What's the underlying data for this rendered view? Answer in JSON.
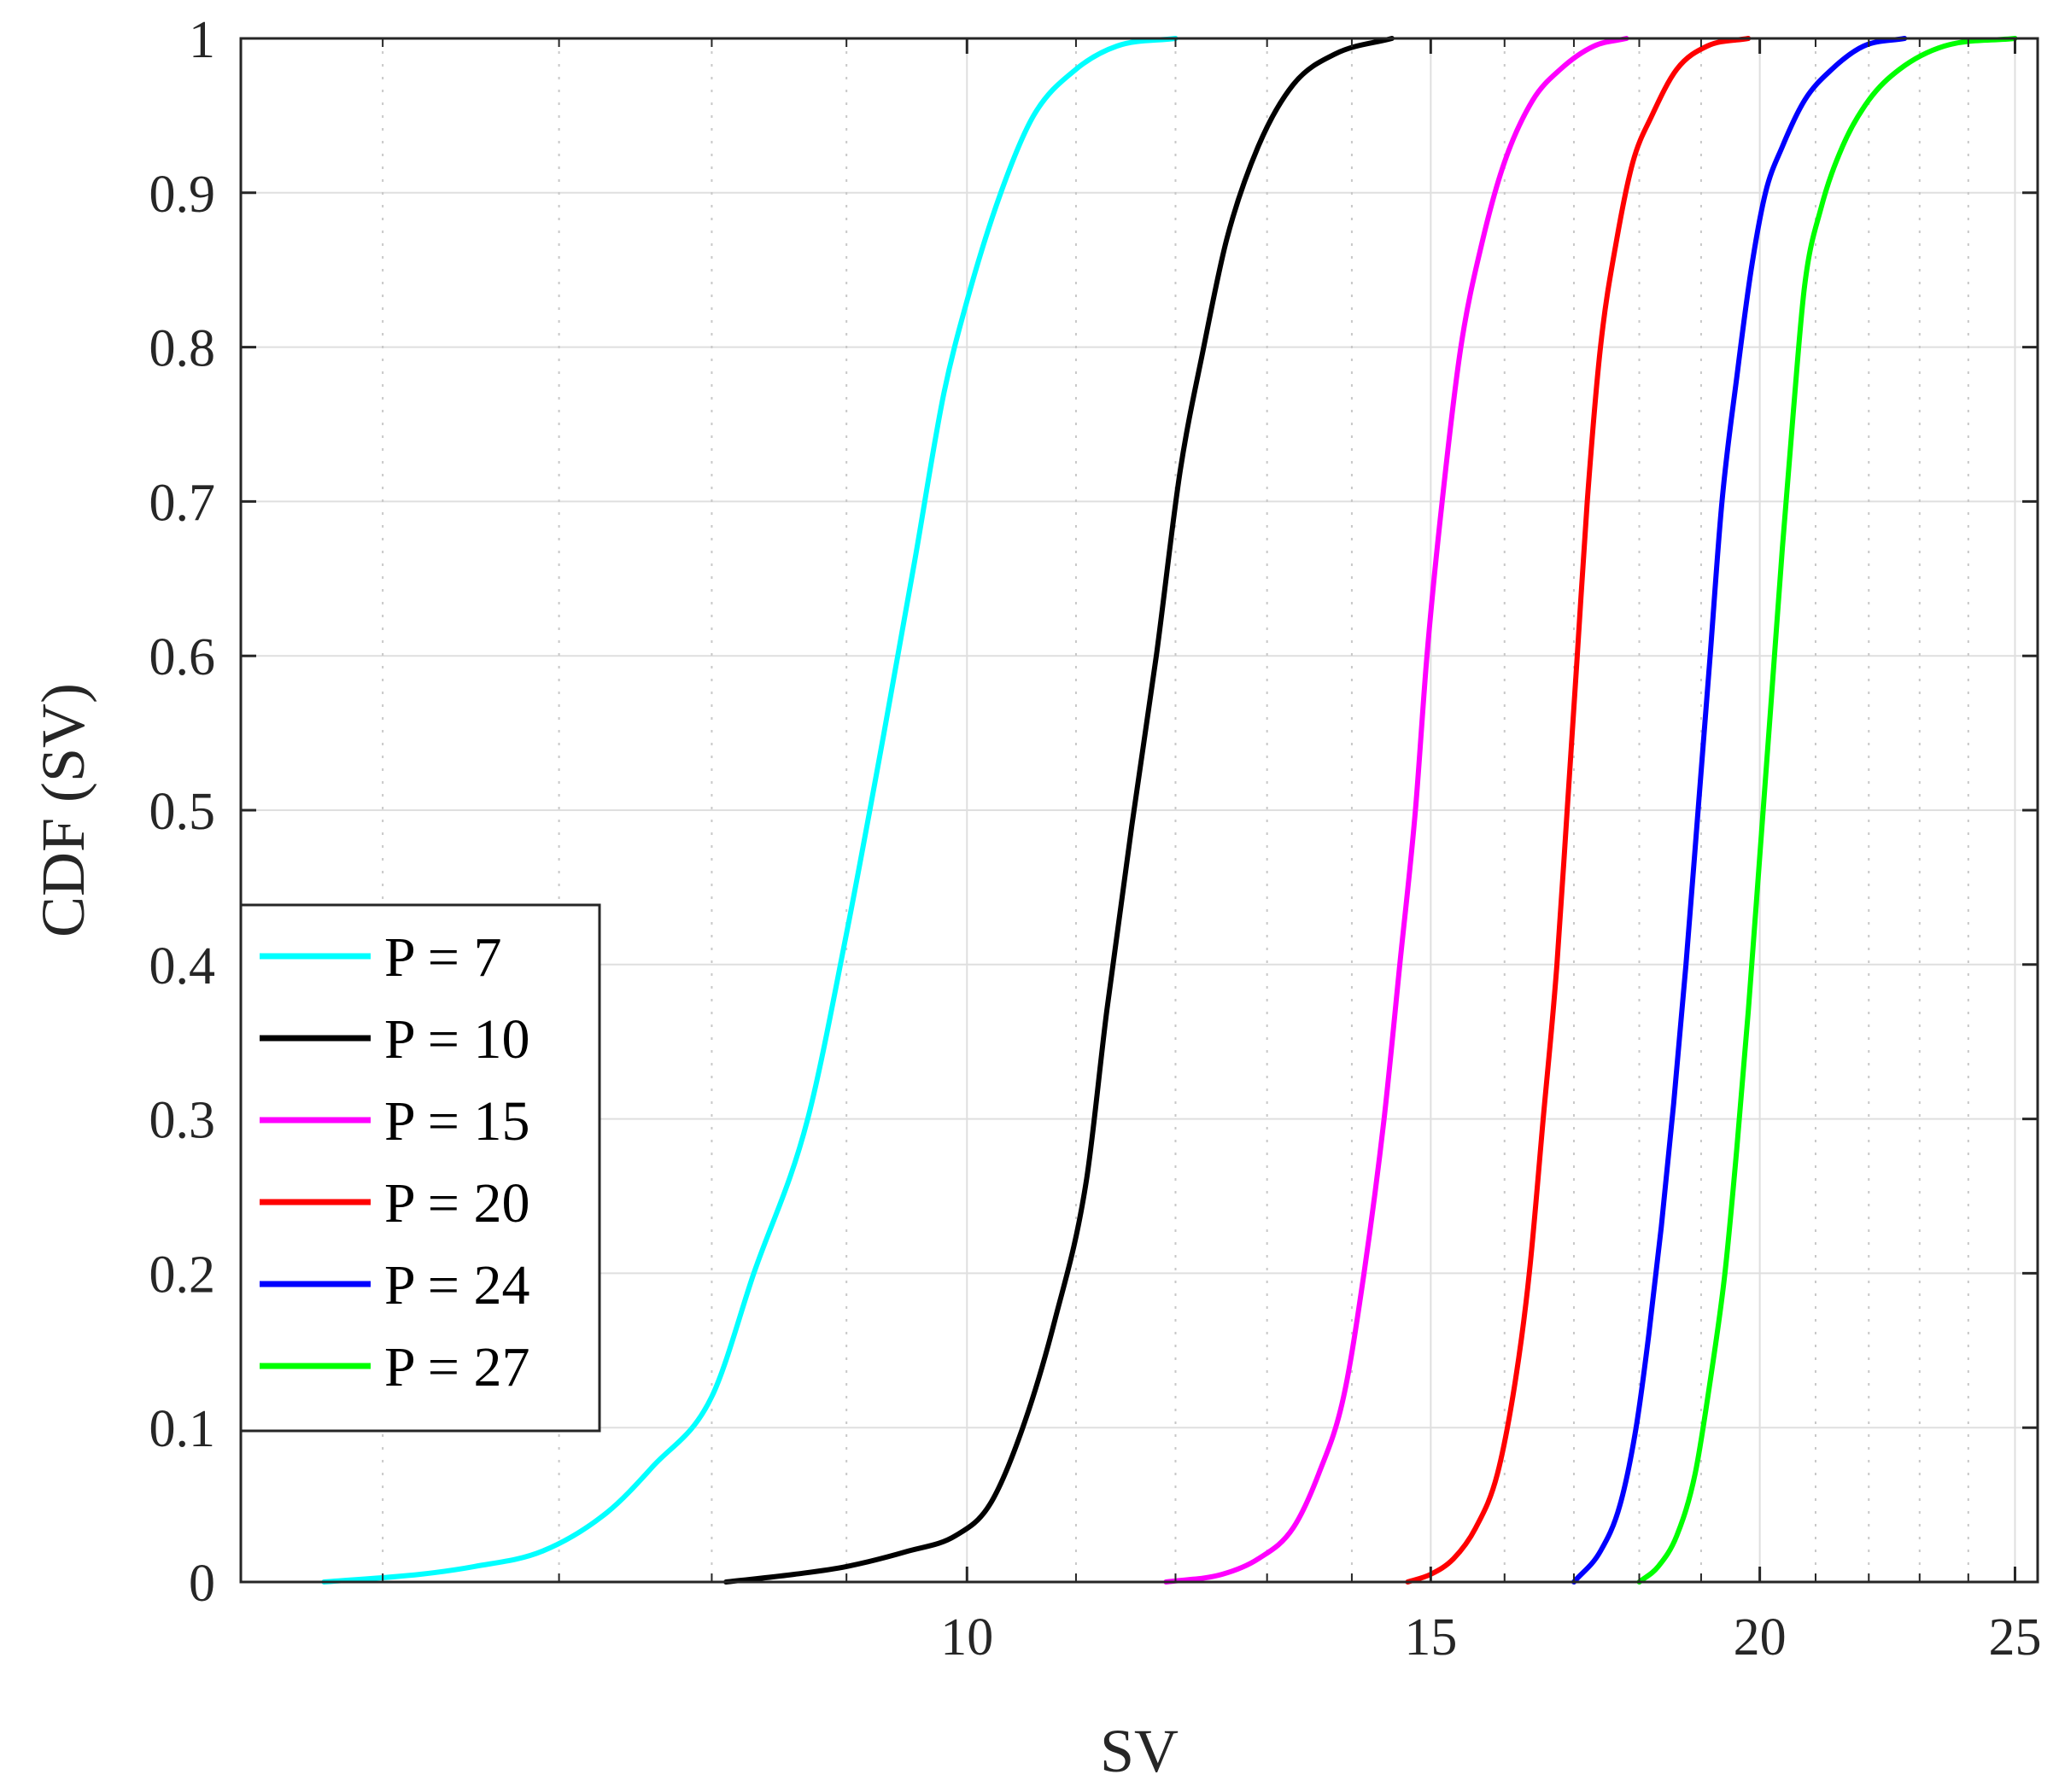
{
  "chart_data": {
    "type": "line",
    "title": "",
    "xlabel": "SV",
    "ylabel": "CDF (SV)",
    "xscale": "log",
    "xlim": [
      5.3,
      25.5
    ],
    "ylim": [
      0,
      1
    ],
    "grid": true,
    "minor_grid_x": true,
    "legend_position": "bottom-left",
    "x_ticks": [
      {
        "value": 10,
        "label": "10"
      },
      {
        "value": 15,
        "label": "15"
      },
      {
        "value": 20,
        "label": "20"
      },
      {
        "value": 25,
        "label": "25"
      }
    ],
    "x_minor_ticks": [
      6,
      7,
      8,
      9,
      11,
      12,
      13,
      14,
      16,
      17,
      18,
      19,
      21,
      22,
      23,
      24
    ],
    "y_ticks": [
      {
        "value": 0,
        "label": "0"
      },
      {
        "value": 0.1,
        "label": "0.1"
      },
      {
        "value": 0.2,
        "label": "0.2"
      },
      {
        "value": 0.3,
        "label": "0.3"
      },
      {
        "value": 0.4,
        "label": "0.4"
      },
      {
        "value": 0.5,
        "label": "0.5"
      },
      {
        "value": 0.6,
        "label": "0.6"
      },
      {
        "value": 0.7,
        "label": "0.7"
      },
      {
        "value": 0.8,
        "label": "0.8"
      },
      {
        "value": 0.9,
        "label": "0.9"
      },
      {
        "value": 1,
        "label": "1"
      }
    ],
    "series": [
      {
        "name": "P = 7",
        "color": "#00FFFF",
        "x": [
          5.7,
          6.2,
          6.5,
          6.9,
          7.3,
          7.6,
          8.0,
          8.3,
          8.7,
          9.0,
          9.3,
          9.55,
          9.8,
          10.0,
          10.3,
          10.6,
          11.0,
          11.4,
          12.0
        ],
        "y": [
          0.0,
          0.005,
          0.01,
          0.02,
          0.045,
          0.075,
          0.12,
          0.2,
          0.3,
          0.42,
          0.55,
          0.66,
          0.77,
          0.83,
          0.9,
          0.95,
          0.98,
          0.995,
          1.0
        ]
      },
      {
        "name": "P = 10",
        "color": "#000000",
        "x": [
          8.1,
          8.6,
          9.0,
          9.5,
          9.9,
          10.2,
          10.5,
          10.8,
          11.1,
          11.3,
          11.55,
          11.8,
          12.05,
          12.3,
          12.55,
          12.9,
          13.3,
          13.8,
          14.5
        ],
        "y": [
          0.0,
          0.005,
          0.01,
          0.02,
          0.03,
          0.05,
          0.1,
          0.17,
          0.26,
          0.37,
          0.49,
          0.6,
          0.72,
          0.8,
          0.87,
          0.93,
          0.97,
          0.99,
          1.0
        ]
      },
      {
        "name": "P = 15",
        "color": "#FF00FF",
        "x": [
          11.9,
          12.5,
          12.9,
          13.3,
          13.6,
          13.9,
          14.15,
          14.4,
          14.6,
          14.8,
          14.95,
          15.15,
          15.4,
          15.7,
          16.0,
          16.4,
          16.8,
          17.3,
          17.8
        ],
        "y": [
          0.0,
          0.005,
          0.015,
          0.035,
          0.07,
          0.12,
          0.2,
          0.3,
          0.4,
          0.5,
          0.6,
          0.7,
          0.8,
          0.87,
          0.92,
          0.96,
          0.98,
          0.995,
          1.0
        ]
      },
      {
        "name": "P = 20",
        "color": "#FF0000",
        "x": [
          14.7,
          15.0,
          15.3,
          15.6,
          15.9,
          16.15,
          16.35,
          16.55,
          16.75,
          16.9,
          17.05,
          17.2,
          17.4,
          17.65,
          17.9,
          18.2,
          18.6,
          19.1,
          19.8
        ],
        "y": [
          0.0,
          0.005,
          0.015,
          0.035,
          0.07,
          0.13,
          0.2,
          0.3,
          0.4,
          0.5,
          0.6,
          0.7,
          0.8,
          0.87,
          0.92,
          0.95,
          0.98,
          0.995,
          1.0
        ]
      },
      {
        "name": "P = 24",
        "color": "#0000FF",
        "x": [
          17.0,
          17.4,
          17.7,
          17.95,
          18.15,
          18.35,
          18.55,
          18.75,
          18.95,
          19.15,
          19.35,
          19.6,
          19.85,
          20.1,
          20.4,
          20.8,
          21.3,
          21.9,
          22.7
        ],
        "y": [
          0.0,
          0.02,
          0.05,
          0.1,
          0.16,
          0.23,
          0.31,
          0.4,
          0.5,
          0.6,
          0.7,
          0.78,
          0.85,
          0.9,
          0.93,
          0.96,
          0.98,
          0.995,
          1.0
        ]
      },
      {
        "name": "P = 27",
        "color": "#00FF00",
        "x": [
          18.0,
          18.3,
          18.6,
          18.9,
          19.15,
          19.4,
          19.6,
          19.8,
          20.0,
          20.2,
          20.4,
          20.6,
          20.8,
          21.1,
          21.5,
          22.0,
          22.6,
          23.5,
          25.0
        ],
        "y": [
          0.0,
          0.01,
          0.03,
          0.07,
          0.13,
          0.2,
          0.28,
          0.37,
          0.47,
          0.57,
          0.67,
          0.76,
          0.84,
          0.89,
          0.93,
          0.96,
          0.98,
          0.995,
          1.0
        ]
      }
    ]
  }
}
